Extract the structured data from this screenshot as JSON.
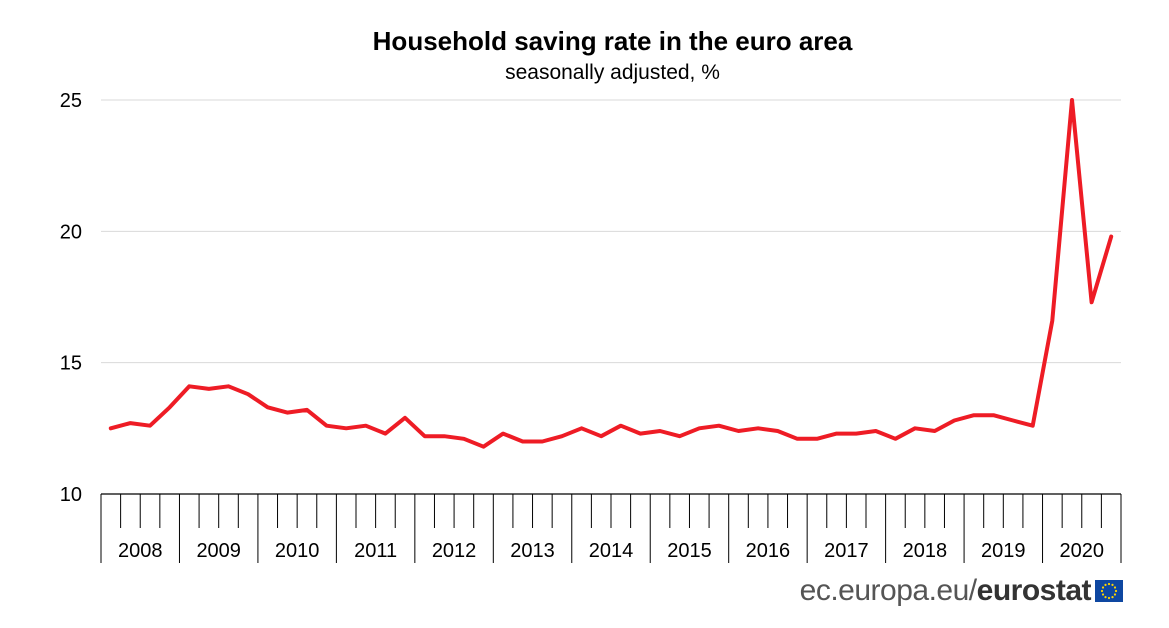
{
  "chart_data": {
    "type": "line",
    "title": "Household saving rate in the euro area",
    "subtitle": "seasonally adjusted, %",
    "xlabel": "",
    "ylabel": "",
    "ylim": [
      10,
      25
    ],
    "yticks": [
      10,
      15,
      20,
      25
    ],
    "grid": true,
    "years": [
      "2008",
      "2009",
      "2010",
      "2011",
      "2012",
      "2013",
      "2014",
      "2015",
      "2016",
      "2017",
      "2018",
      "2019",
      "2020"
    ],
    "quarters_per_year": 4,
    "series": [
      {
        "color": "#ee1c25",
        "values": [
          12.5,
          12.7,
          12.6,
          13.3,
          14.1,
          14.0,
          14.1,
          13.8,
          13.3,
          13.1,
          13.2,
          12.6,
          12.5,
          12.6,
          12.3,
          12.9,
          12.2,
          12.2,
          12.1,
          11.8,
          12.3,
          12.0,
          12.0,
          12.2,
          12.5,
          12.2,
          12.6,
          12.3,
          12.4,
          12.2,
          12.5,
          12.6,
          12.4,
          12.5,
          12.4,
          12.1,
          12.1,
          12.3,
          12.3,
          12.4,
          12.1,
          12.5,
          12.4,
          12.8,
          13.0,
          13.0,
          12.8,
          12.6,
          16.6,
          25.0,
          17.3,
          19.8
        ]
      }
    ]
  },
  "footer": {
    "url": "ec.europa.eu/",
    "brand": "eurostat",
    "flag_icon": "eu-flag-icon"
  }
}
